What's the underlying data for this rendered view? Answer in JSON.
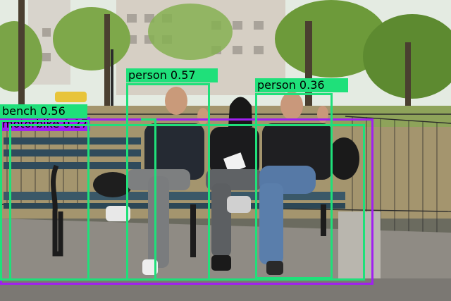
{
  "colors": {
    "person": "#1fe07a",
    "bench": "#1fe07a",
    "motorbike": "#a020f0",
    "sky": "#e9efe6",
    "foliage": "#6f9b3d",
    "building": "#d9d3c8",
    "ground": "#9a8d74",
    "path": "#8c8c87",
    "bench_wood": "#2f4a5a"
  },
  "detections": [
    {
      "label": "motorbike 0.27",
      "class": "motorbike"
    },
    {
      "label": "bench 0.56",
      "class": "bench"
    },
    {
      "label": "person 0.57",
      "class": "person"
    },
    {
      "label": "person 0.36",
      "class": "person"
    }
  ]
}
